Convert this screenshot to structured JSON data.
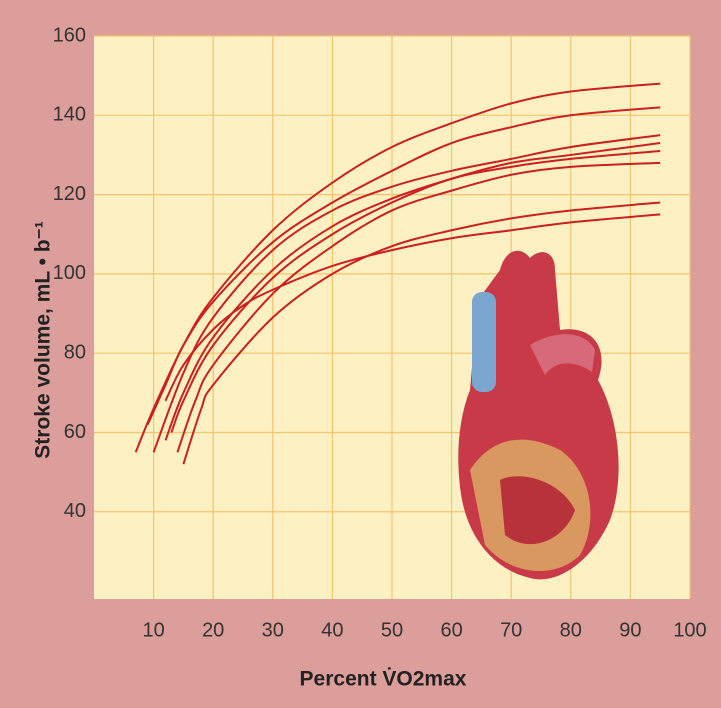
{
  "chart_data": {
    "type": "line",
    "ylabel": "Stroke volume, mL • b⁻¹",
    "xlabel": "Percent V̇O2max",
    "xlim": [
      0,
      100
    ],
    "ylim": [
      18,
      160
    ],
    "xticks": [
      10,
      20,
      30,
      40,
      50,
      60,
      70,
      80,
      90,
      100
    ],
    "yticks": [
      40,
      60,
      80,
      100,
      120,
      140,
      160
    ],
    "grid": true,
    "series": [
      {
        "color": "#cc1f1f",
        "x": [
          7,
          10,
          15,
          20,
          30,
          40,
          50,
          60,
          70,
          80,
          95
        ],
        "values": [
          55,
          66,
          82,
          94,
          111,
          123,
          132,
          138,
          143,
          146,
          148
        ]
      },
      {
        "color": "#cc1f1f",
        "x": [
          9,
          12,
          15,
          20,
          30,
          40,
          50,
          60,
          70,
          80,
          95
        ],
        "values": [
          62,
          72,
          82,
          93,
          108,
          118,
          126,
          133,
          137,
          140,
          142
        ]
      },
      {
        "color": "#cc1f1f",
        "x": [
          10,
          15,
          20,
          30,
          40,
          50,
          60,
          70,
          80,
          95
        ],
        "values": [
          55,
          75,
          89,
          106,
          116,
          122,
          126,
          129,
          132,
          135
        ]
      },
      {
        "color": "#cc1f1f",
        "x": [
          12,
          15,
          20,
          30,
          40,
          50,
          60,
          70,
          80,
          95
        ],
        "values": [
          58,
          70,
          84,
          101,
          112,
          119,
          124,
          128,
          130,
          133
        ]
      },
      {
        "color": "#cc1f1f",
        "x": [
          13,
          15,
          20,
          30,
          40,
          50,
          60,
          70,
          80,
          95
        ],
        "values": [
          60,
          68,
          82,
          99,
          110,
          118,
          124,
          127,
          129,
          131
        ]
      },
      {
        "color": "#cc1f1f",
        "x": [
          14,
          17,
          20,
          30,
          40,
          50,
          60,
          70,
          80,
          95
        ],
        "values": [
          55,
          68,
          77,
          95,
          107,
          116,
          121,
          125,
          127,
          128
        ]
      },
      {
        "color": "#cc1f1f",
        "x": [
          15,
          18,
          20,
          30,
          40,
          50,
          60,
          70,
          80,
          95
        ],
        "values": [
          52,
          66,
          72,
          89,
          100,
          107,
          111,
          114,
          116,
          118
        ]
      },
      {
        "color": "#cc1f1f",
        "x": [
          12,
          15,
          20,
          25,
          30,
          40,
          50,
          60,
          70,
          80,
          95
        ],
        "values": [
          68,
          77,
          86,
          92,
          96,
          102,
          106,
          109,
          111,
          113,
          115
        ]
      }
    ]
  }
}
